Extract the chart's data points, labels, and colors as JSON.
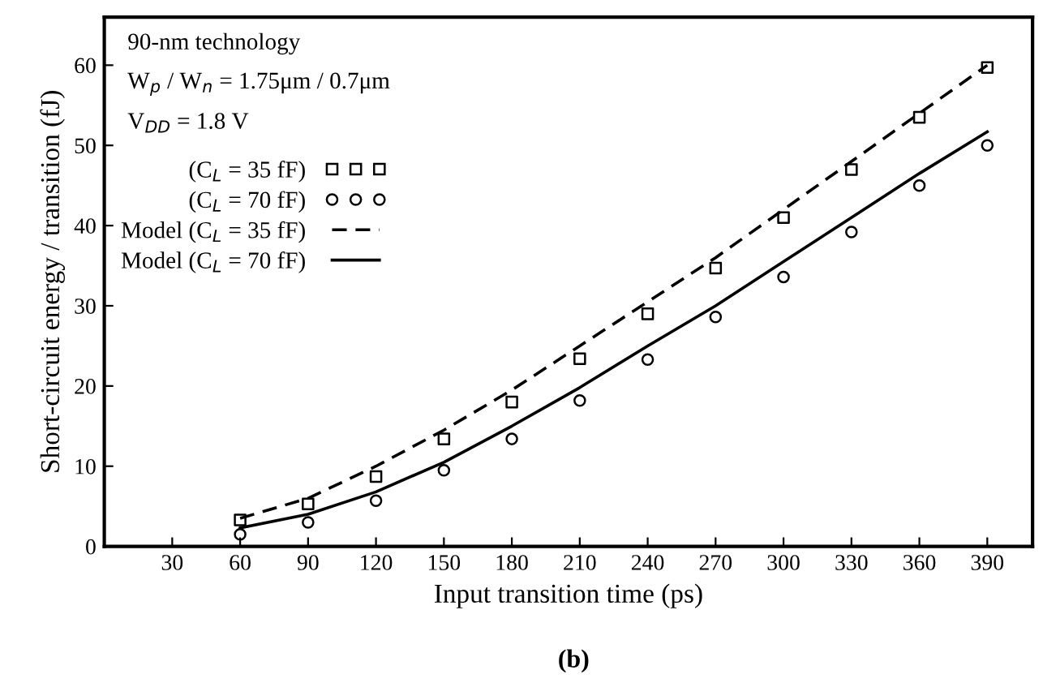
{
  "chart_data": {
    "type": "scatter",
    "xlabel": "Input transition time (ps)",
    "ylabel": "Short-circuit energy / transition (fJ)",
    "annotations": [
      "90-nm technology",
      "W$_{p}$ / W$_{n}$ = 1.75μm / 0.7μm",
      "V$_{DD}$ = 1.8 V",
      "(b)"
    ],
    "x": [
      60,
      90,
      120,
      150,
      180,
      210,
      240,
      270,
      300,
      330,
      360,
      390
    ],
    "series": [
      {
        "name": "(C$_{L}$ = 35 fF)",
        "type": "scatter",
        "marker": "square",
        "color": "#000000",
        "values": [
          3.3,
          5.3,
          8.7,
          13.4,
          18,
          23.4,
          29,
          34.7,
          41,
          47,
          53.5,
          59.7
        ]
      },
      {
        "name": "(C$_{L}$ = 70 fF)",
        "type": "scatter",
        "marker": "circle",
        "color": "#000000",
        "values": [
          1.5,
          3,
          5.7,
          9.5,
          13.4,
          18.2,
          23.3,
          28.6,
          33.6,
          39.2,
          45,
          50
        ]
      },
      {
        "name": "Model (C$_{L}$ = 35 fF)",
        "type": "line",
        "line_style": "dashed",
        "color": "#000000",
        "values": [
          3.5,
          6,
          10,
          14.5,
          19.5,
          25,
          30.5,
          36,
          42,
          48,
          54,
          60
        ]
      },
      {
        "name": "Model (C$_{L}$ = 70 fF)",
        "type": "line",
        "line_style": "solid",
        "color": "#000000",
        "values": [
          2.3,
          4,
          6.8,
          10.5,
          15,
          19.8,
          25,
          30,
          35.5,
          41,
          46.5,
          51.7
        ]
      }
    ],
    "xlim": [
      0,
      410
    ],
    "ylim": [
      0,
      66
    ],
    "xticks": [
      30,
      60,
      90,
      120,
      150,
      180,
      210,
      240,
      270,
      300,
      330,
      360,
      390
    ],
    "yticks": [
      0,
      10,
      20,
      30,
      40,
      50,
      60
    ],
    "grid": false,
    "legend": "top left"
  }
}
